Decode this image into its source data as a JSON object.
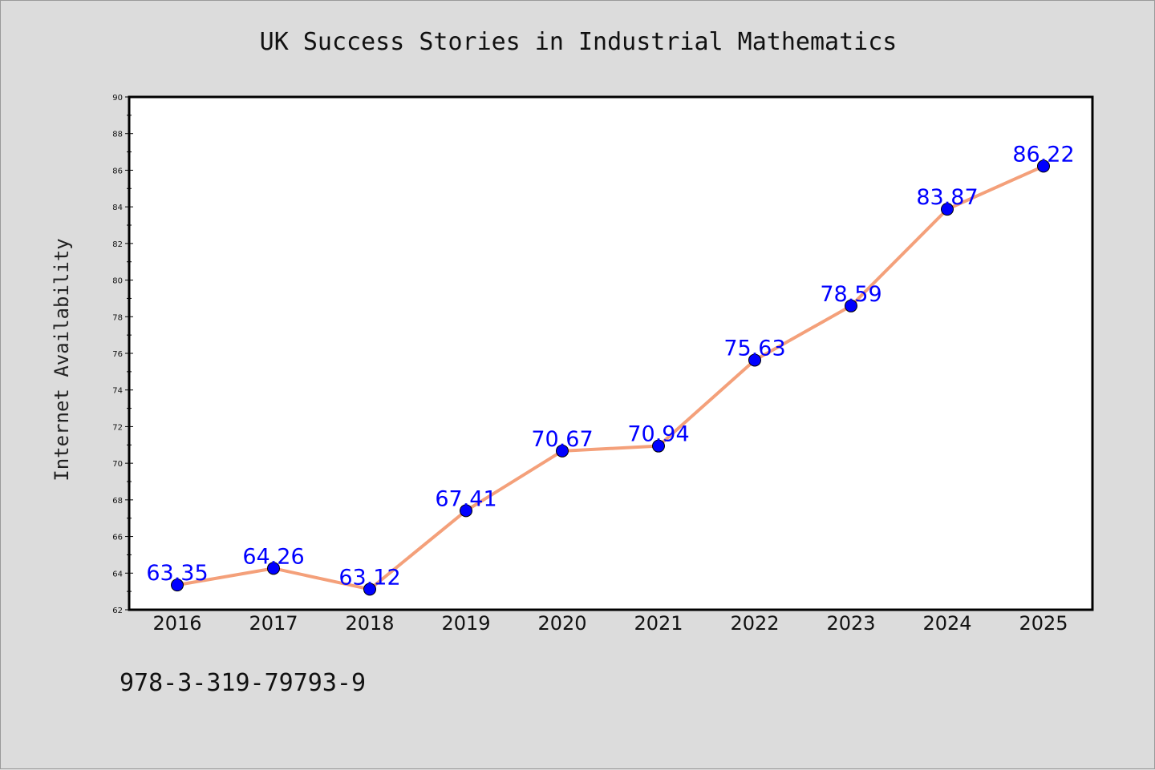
{
  "chart_data": {
    "type": "line",
    "title": "UK Success Stories in Industrial Mathematics",
    "xlabel": "",
    "ylabel": "Internet Availability",
    "categories": [
      "2016",
      "2017",
      "2018",
      "2019",
      "2020",
      "2021",
      "2022",
      "2023",
      "2024",
      "2025"
    ],
    "series": [
      {
        "values": [
          63.35,
          64.26,
          63.12,
          67.41,
          70.67,
          70.94,
          75.63,
          78.59,
          83.87,
          86.22
        ],
        "data_labels": [
          "63.35",
          "64.26",
          "63.12",
          "67.41",
          "70.67",
          "70.94",
          "75.63",
          "78.59",
          "83.87",
          "86.22"
        ]
      }
    ],
    "ylim": [
      62,
      90
    ],
    "yticks": [
      "62",
      "64",
      "66",
      "68",
      "70",
      "72",
      "74",
      "76",
      "78",
      "80",
      "82",
      "84",
      "86",
      "88",
      "90"
    ],
    "grid": false,
    "legend": "none",
    "colors": {
      "line": "#f4a07a",
      "marker": "#0000ff",
      "data_label": "#0000ff",
      "background": "#dcdcdc",
      "plot_background": "#ffffff"
    }
  },
  "footer": {
    "isbn": "978-3-319-79793-9"
  }
}
